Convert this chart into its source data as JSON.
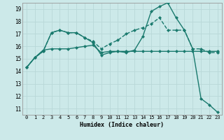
{
  "xlabel": "Humidex (Indice chaleur)",
  "bg_color": "#cce9e9",
  "grid_color_major": "#b8d8d8",
  "grid_color_minor": "#d0e8e8",
  "line_color": "#1a7a6e",
  "x_ticks": [
    0,
    1,
    2,
    3,
    4,
    5,
    6,
    7,
    8,
    9,
    10,
    11,
    12,
    13,
    14,
    15,
    16,
    17,
    18,
    19,
    20,
    21,
    22,
    23
  ],
  "y_ticks": [
    11,
    12,
    13,
    14,
    15,
    16,
    17,
    18,
    19
  ],
  "xlim": [
    -0.5,
    23.5
  ],
  "ylim": [
    10.5,
    19.5
  ],
  "series": [
    {
      "x": [
        0,
        1,
        2,
        3,
        4,
        5,
        6,
        7,
        8,
        9,
        10,
        11,
        12,
        13,
        14,
        15,
        16,
        17,
        18,
        19,
        20,
        21,
        22,
        23
      ],
      "y": [
        14.3,
        15.1,
        15.6,
        17.1,
        17.3,
        17.1,
        17.1,
        16.7,
        16.3,
        15.3,
        15.5,
        15.6,
        15.5,
        15.7,
        16.8,
        18.8,
        19.2,
        19.5,
        18.3,
        17.3,
        15.8,
        11.8,
        11.3,
        10.7
      ],
      "linestyle": "-",
      "marker": "D",
      "markersize": 2,
      "linewidth": 1.0
    },
    {
      "x": [
        0,
        1,
        2,
        3,
        4,
        5,
        6,
        7,
        8,
        9,
        10,
        11,
        12,
        13,
        14,
        15,
        16,
        17,
        18,
        19,
        20,
        21,
        22,
        23
      ],
      "y": [
        14.3,
        15.1,
        15.6,
        17.1,
        17.3,
        17.1,
        17.1,
        16.7,
        16.4,
        15.8,
        16.2,
        16.5,
        17.0,
        17.3,
        17.5,
        17.8,
        18.3,
        17.3,
        17.3,
        17.3,
        15.8,
        15.8,
        15.5,
        15.5
      ],
      "linestyle": "--",
      "marker": "D",
      "markersize": 2,
      "linewidth": 1.0
    },
    {
      "x": [
        0,
        1,
        2,
        3,
        4,
        5,
        6,
        7,
        8,
        9,
        10,
        11,
        12,
        13,
        14,
        15,
        16,
        17,
        18,
        19,
        20,
        21,
        22,
        23
      ],
      "y": [
        14.3,
        15.1,
        15.7,
        15.8,
        15.8,
        15.8,
        15.9,
        16.0,
        16.1,
        15.5,
        15.6,
        15.6,
        15.6,
        15.6,
        15.6,
        15.6,
        15.6,
        15.6,
        15.6,
        15.6,
        15.6,
        15.6,
        15.6,
        15.6
      ],
      "linestyle": "-",
      "marker": "D",
      "markersize": 2,
      "linewidth": 1.0
    }
  ]
}
